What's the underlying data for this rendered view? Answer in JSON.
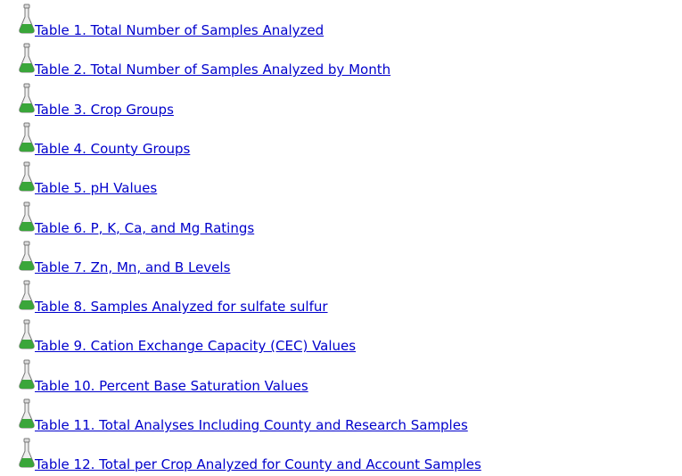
{
  "links": [
    "Table 1. Total Number of Samples Analyzed",
    "Table 2. Total Number of Samples Analyzed by Month",
    "Table 3. Crop Groups",
    "Table 4. County Groups",
    "Table 5. pH Values",
    "Table 6. P, K, Ca, and Mg Ratings",
    "Table 7. Zn, Mn, and B Levels",
    "Table 8. Samples Analyzed for sulfate sulfur",
    "Table 9. Cation Exchange Capacity (CEC) Values",
    "Table 10. Percent Base Saturation Values",
    "Table 11. Total Analyses Including County and Research Samples",
    "Table 12. Total per Crop Analyzed for County and Account Samples"
  ]
}
